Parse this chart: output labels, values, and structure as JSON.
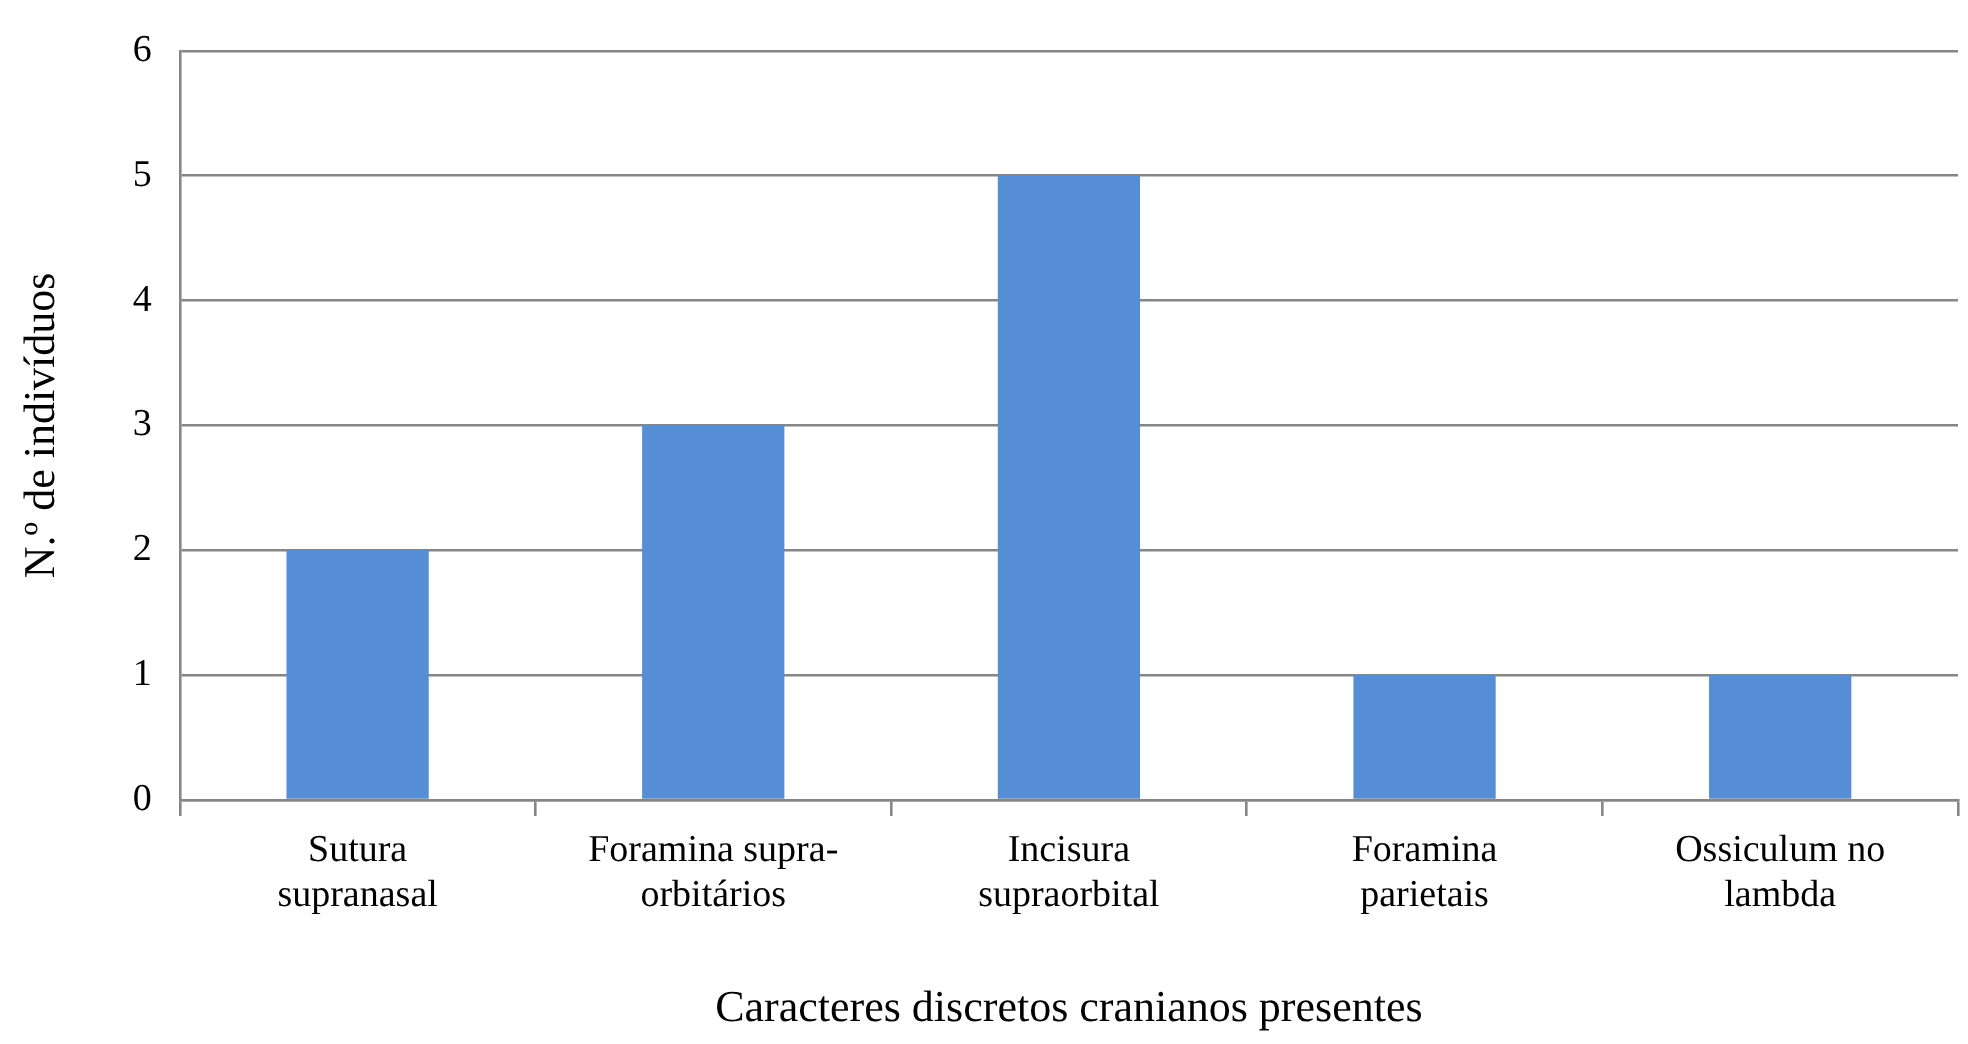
{
  "chart_data": {
    "type": "bar",
    "xlabel": "Caracteres discretos cranianos presentes",
    "ylabel": "N.º de indivíduos",
    "categories": [
      "Sutura supranasal",
      "Foramina supra-orbitários",
      "Incisura supraorbital",
      "Foramina parietais",
      "Ossiculum no lambda"
    ],
    "values": [
      2,
      3,
      5,
      1,
      1
    ],
    "color": "#558ed5",
    "ylim": [
      0,
      6
    ],
    "yticks": [
      0,
      1,
      2,
      3,
      4,
      5,
      6
    ],
    "grid": "y"
  }
}
